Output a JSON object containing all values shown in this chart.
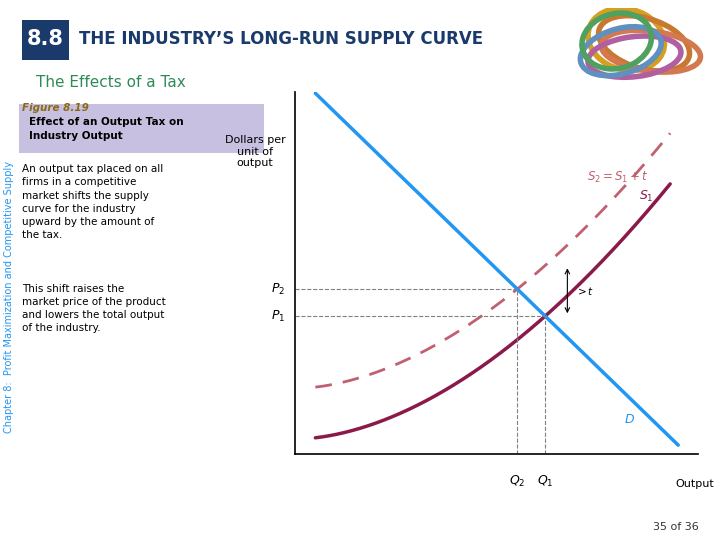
{
  "title_number": "8.8",
  "title_text": "THE INDUSTRY’S LONG-RUN SUPPLY CURVE",
  "subtitle": "The Effects of a Tax",
  "figure_label": "Figure 8.19",
  "box_label": "Effect of an Output Tax on\nIndustry Output",
  "body_text1": "An output tax placed on all\nfirms in a competitive\nmarket shifts the supply\ncurve for the industry\nupward by the amount of\nthe tax.",
  "body_text2": "This shift raises the\nmarket price of the product\nand lowers the total output\nof the industry.",
  "sidebar_text": "Chapter 8:  Profit Maximization and Competitive Supply",
  "page_text": "35 of 36",
  "ylabel": "Dollars per\nunit of\noutput",
  "xlabel": "Output",
  "color_header_bg": "#1a3a6b",
  "color_subtitle": "#2e8b57",
  "color_box_bg": "#c8c0e0",
  "color_figure_label": "#8b6914",
  "color_S1": "#8b1a4a",
  "color_S2": "#c06070",
  "color_D": "#2196f3",
  "color_sidebar": "#2196f3",
  "Q1": 0.62,
  "P1": 0.38,
  "P2": 0.52,
  "xlim": [
    0,
    1.0
  ],
  "ylim": [
    0,
    1.0
  ],
  "s1_intercept": 0.04,
  "s1_power": 1.8,
  "d_yintercept": 1.05
}
